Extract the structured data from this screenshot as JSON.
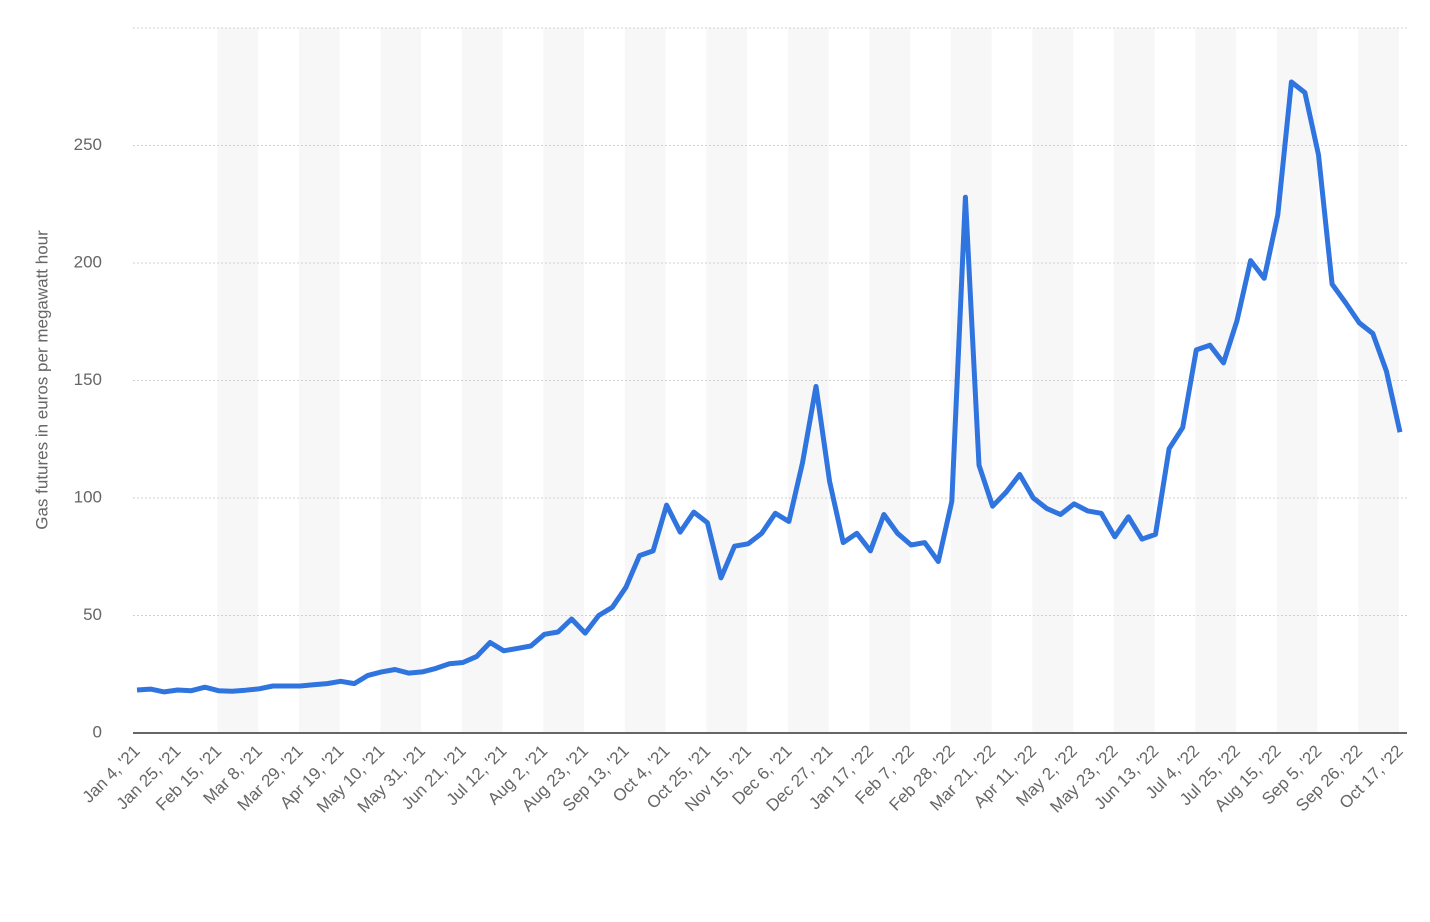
{
  "chart_data": {
    "type": "line",
    "y_label": "Gas futures in euros per megawatt hour",
    "categories": [
      "Jan 4, '21",
      null,
      null,
      "Jan 25, '21",
      null,
      null,
      "Feb 15, '21",
      null,
      null,
      "Mar 8, '21",
      null,
      null,
      "Mar 29, '21",
      null,
      null,
      "Apr 19, '21",
      null,
      null,
      "May 10, '21",
      null,
      null,
      "May 31, '21",
      null,
      null,
      "Jun 21, '21",
      null,
      null,
      "Jul 12, '21",
      null,
      null,
      "Aug 2, '21",
      null,
      null,
      "Aug 23, '21",
      null,
      null,
      "Sep 13, '21",
      null,
      null,
      "Oct 4, '21",
      null,
      null,
      "Oct 25, '21",
      null,
      null,
      "Nov 15, '21",
      null,
      null,
      "Dec 6, '21",
      null,
      null,
      "Dec 27, '21",
      null,
      null,
      "Jan 17, '22",
      null,
      null,
      "Feb 7, '22",
      null,
      null,
      "Feb 28, '22",
      null,
      null,
      "Mar 21, '22",
      null,
      null,
      "Apr 11, '22",
      null,
      null,
      "May 2, '22",
      null,
      null,
      "May 23, '22",
      null,
      null,
      "Jun 13, '22",
      null,
      null,
      "Jul 4, '22",
      null,
      null,
      "Jul 25, '22",
      null,
      null,
      "Aug 15, '22",
      null,
      null,
      "Sep 5, '22",
      null,
      null,
      "Sep 26, '22",
      null,
      null,
      "Oct 17, '22"
    ],
    "series": [
      {
        "color": "#2f74df",
        "values": [
          18.3,
          18.7,
          17.5,
          18.3,
          18,
          19.5,
          18,
          17.8,
          18.2,
          18.8,
          20,
          20,
          20,
          20.5,
          21,
          22,
          21,
          24.5,
          26,
          27,
          25.5,
          26,
          27.5,
          29.5,
          30,
          32.5,
          38.5,
          35,
          36,
          37,
          42,
          43,
          48.5,
          42.5,
          50,
          53.5,
          62,
          75.5,
          77.5,
          97,
          85.5,
          94,
          89.5,
          66,
          79.5,
          80.5,
          85,
          93.5,
          90,
          115,
          147.5,
          107,
          81,
          85,
          77.5,
          93,
          85,
          80,
          81,
          73,
          98.5,
          228,
          114,
          96.5,
          102.5,
          110,
          100,
          95.5,
          93,
          97.5,
          94.5,
          93.5,
          83.5,
          92,
          82.5,
          84.5,
          121,
          130,
          163,
          165,
          157.5,
          175.5,
          201,
          193.5,
          220.5,
          277,
          272.5,
          246,
          191,
          183,
          174.5,
          170,
          154,
          128
        ]
      }
    ],
    "ylim": [
      0,
      300
    ],
    "yticks": [
      0,
      50,
      100,
      150,
      200,
      250
    ],
    "grid": true
  }
}
